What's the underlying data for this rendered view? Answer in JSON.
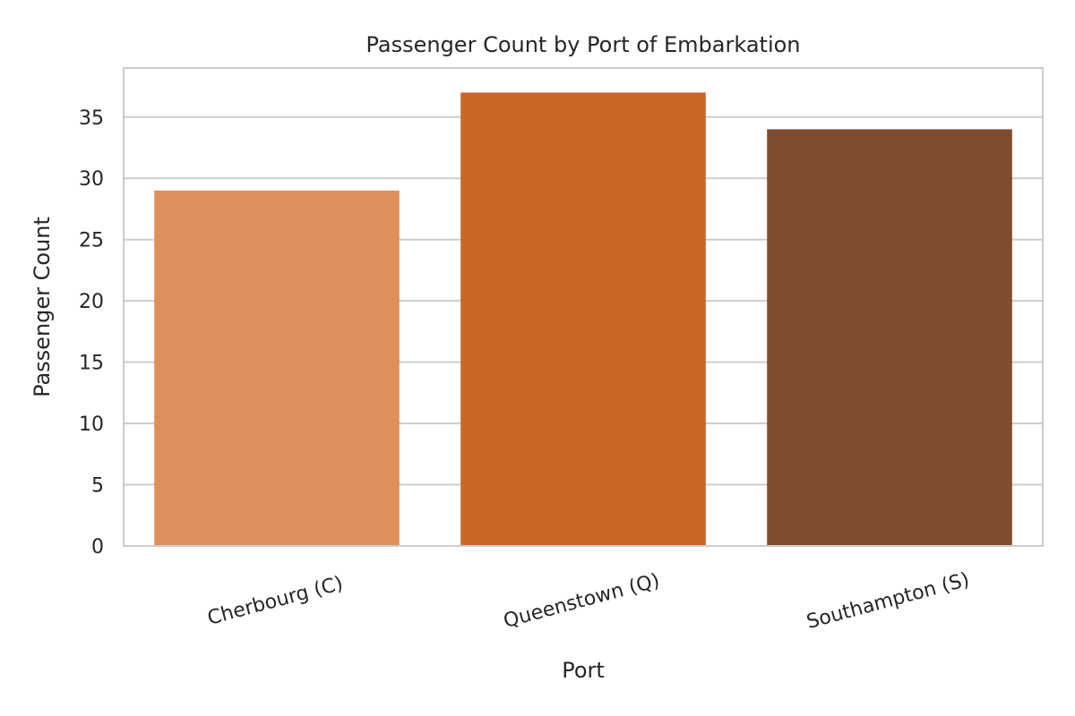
{
  "chart_data": {
    "type": "bar",
    "title": "Passenger Count by Port of Embarkation",
    "xlabel": "Port",
    "ylabel": "Passenger Count",
    "categories": [
      "Cherbourg (C)",
      "Queenstown (Q)",
      "Southampton (S)"
    ],
    "values": [
      29,
      37,
      34
    ],
    "colors": [
      "#dd8f5d",
      "#cb6528",
      "#7f4c2e"
    ],
    "ylim": [
      0,
      39
    ],
    "yticks": [
      0,
      5,
      10,
      15,
      20,
      25,
      30,
      35
    ],
    "grid": true,
    "grid_axis": "y",
    "frame_color": "#cccccc",
    "grid_color": "#cccccc",
    "text_color": "#262626"
  }
}
